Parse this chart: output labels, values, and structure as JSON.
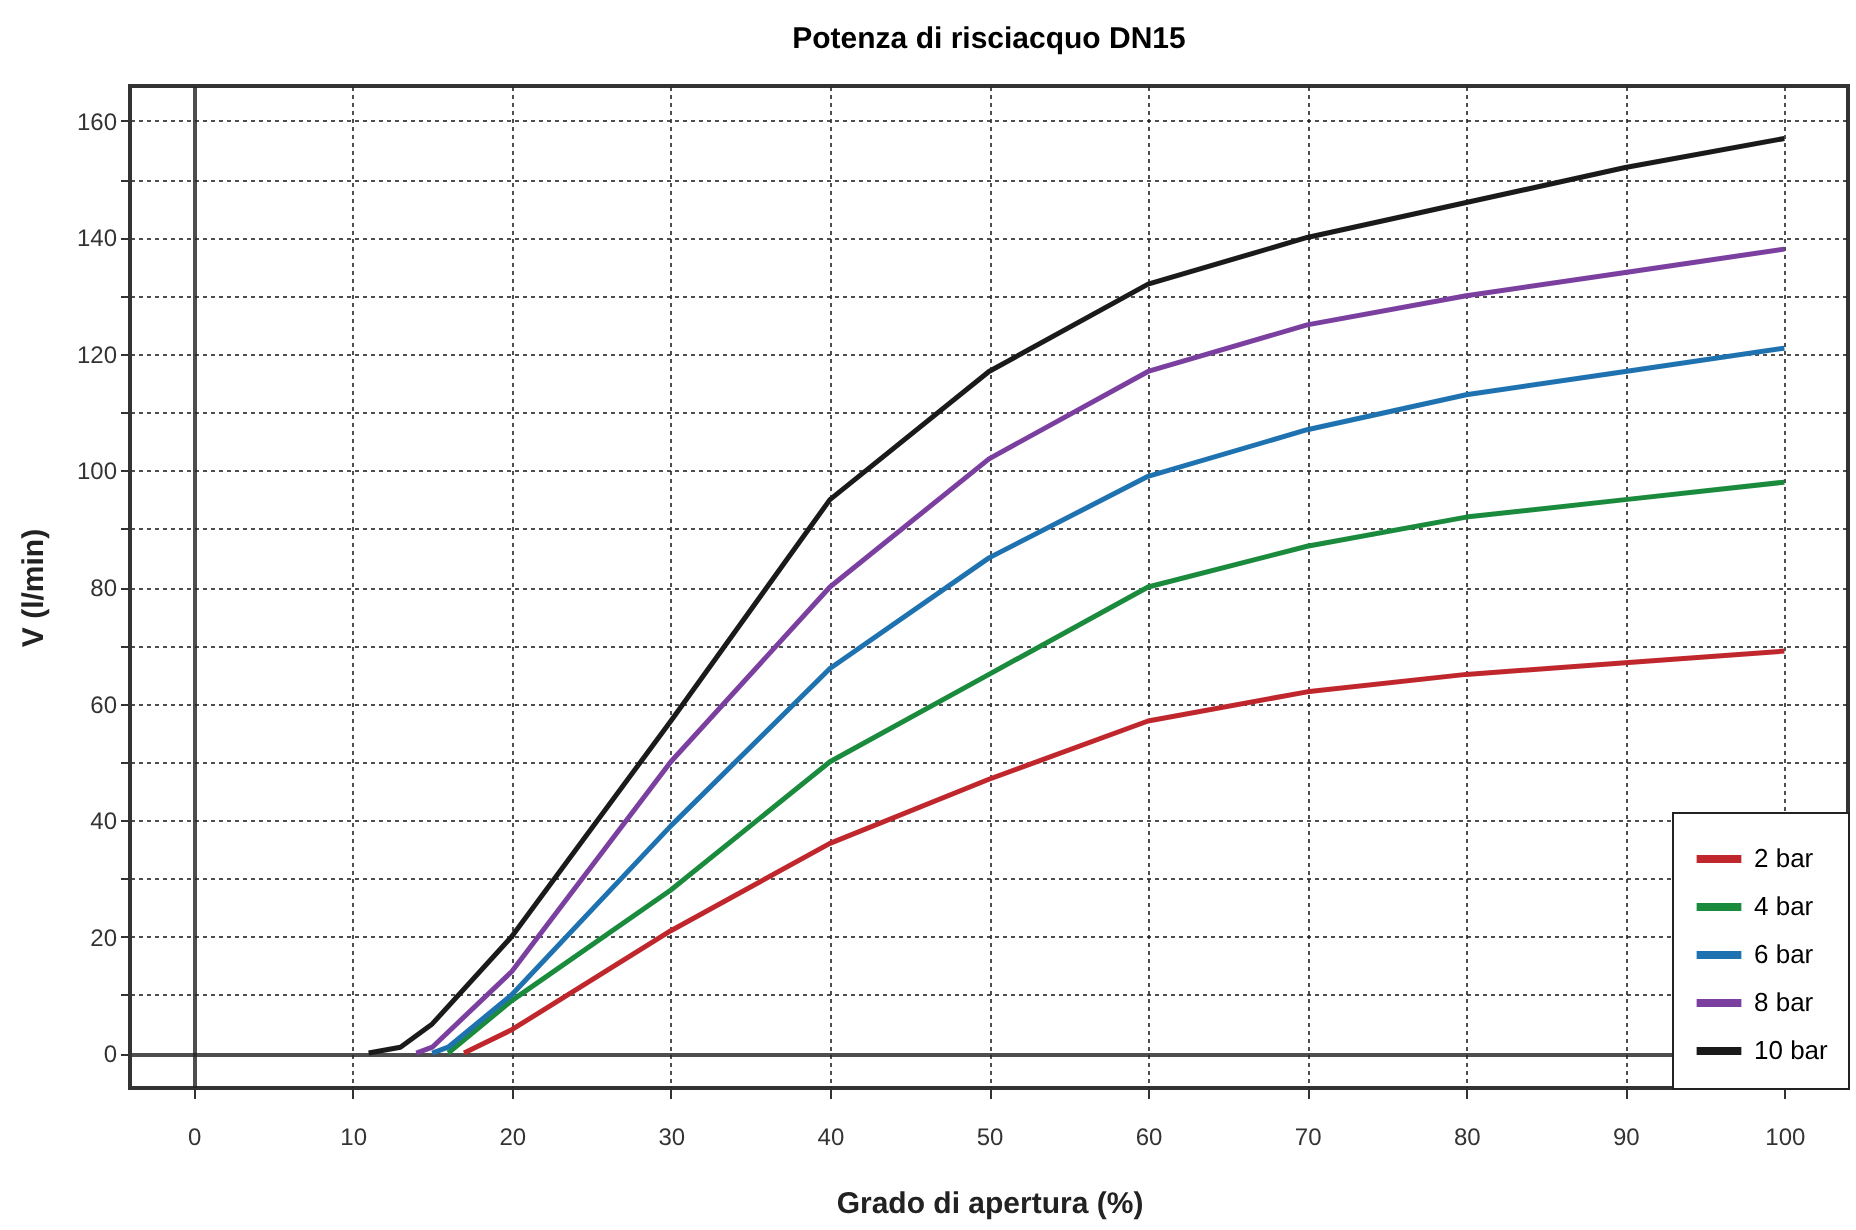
{
  "chart_data": {
    "type": "line",
    "title": "Potenza di risciacquo DN15",
    "xlabel": "Grado di apertura (%)",
    "ylabel": "V (l/min)",
    "xlim": [
      -4,
      104
    ],
    "xticks": [
      0,
      10,
      20,
      30,
      40,
      50,
      60,
      70,
      80,
      90,
      100
    ],
    "ylim": [
      -6,
      166
    ],
    "yticks": [
      0,
      {
        "value": 10,
        "label": null
      },
      20,
      {
        "value": 30,
        "label": null
      },
      40,
      {
        "value": 50,
        "label": null
      },
      60,
      {
        "value": 70,
        "label": null
      },
      80,
      {
        "value": 90,
        "label": null
      },
      100,
      {
        "value": 110,
        "label": null
      },
      120,
      {
        "value": 130,
        "label": null
      },
      140,
      {
        "value": 150,
        "label": null
      },
      160
    ],
    "grid": true,
    "legend": "bottom right",
    "marker": "none",
    "line_style": "solid",
    "series": [
      {
        "name": "2 bar",
        "color": "#c0272d",
        "x": [
          17,
          20,
          30,
          40,
          50,
          60,
          70,
          80,
          90,
          100
        ],
        "values": [
          0,
          4,
          21,
          36,
          47,
          57,
          62,
          65,
          67,
          69
        ]
      },
      {
        "name": "4 bar",
        "color": "#1a8a3c",
        "x": [
          16,
          20,
          30,
          40,
          50,
          60,
          70,
          80,
          90,
          100
        ],
        "values": [
          0,
          9,
          28,
          50,
          65,
          80,
          87,
          92,
          95,
          98
        ]
      },
      {
        "name": "6 bar",
        "color": "#1f72b0",
        "x": [
          15,
          16,
          20,
          30,
          40,
          50,
          60,
          70,
          80,
          90,
          100
        ],
        "values": [
          0,
          1,
          10,
          39,
          66,
          85,
          99,
          107,
          113,
          117,
          121
        ]
      },
      {
        "name": "8 bar",
        "color": "#7b3fa0",
        "x": [
          14,
          15,
          20,
          30,
          40,
          50,
          60,
          70,
          80,
          90,
          100
        ],
        "values": [
          0,
          1,
          14,
          50,
          80,
          102,
          117,
          125,
          130,
          134,
          138
        ]
      },
      {
        "name": "10 bar",
        "color": "#1a1a1a",
        "x": [
          11,
          13,
          15,
          20,
          30,
          40,
          50,
          60,
          70,
          80,
          90,
          100
        ],
        "values": [
          0,
          1,
          5,
          20,
          57,
          95,
          117,
          132,
          140,
          146,
          152,
          157
        ]
      }
    ]
  }
}
